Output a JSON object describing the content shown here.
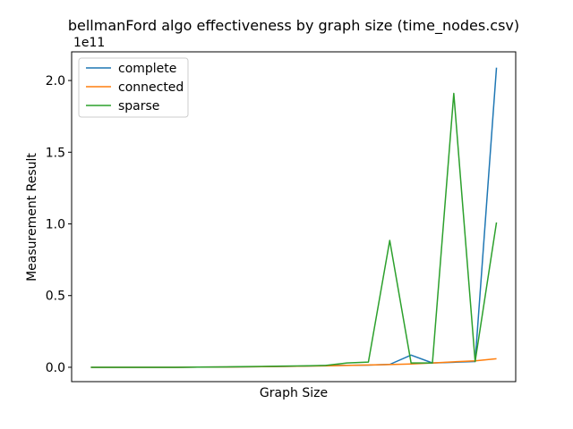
{
  "chart_data": {
    "type": "line",
    "title": "bellmanFord algo effectiveness by graph size (time_nodes.csv)",
    "xlabel": "Graph Size",
    "ylabel": "Measurement Result",
    "y_offset_label": "1e11",
    "y_scale": 100000000000,
    "ylim": [
      -0.1,
      2.2
    ],
    "xlim": [
      -0.9,
      19.9
    ],
    "x_tick_labels": [],
    "y_ticks": [
      0.0,
      0.5,
      1.0,
      1.5,
      2.0
    ],
    "y_tick_labels": [
      "0.0",
      "0.5",
      "1.0",
      "1.5",
      "2.0"
    ],
    "legend_position": "top-left",
    "grid": false,
    "x": [
      0,
      1,
      2,
      3,
      4,
      5,
      6,
      7,
      8,
      9,
      10,
      11,
      12,
      13,
      14,
      15,
      16,
      17,
      18,
      19
    ],
    "series": [
      {
        "name": "complete",
        "color": "#1f77b4",
        "values": [
          0.0,
          0.0,
          0.0,
          0.0,
          0.0,
          0.001,
          0.002,
          0.003,
          0.004,
          0.006,
          0.008,
          0.012,
          0.014,
          0.015,
          0.02,
          0.085,
          0.03,
          0.035,
          0.04,
          2.09
        ]
      },
      {
        "name": "connected",
        "color": "#ff7f0e",
        "values": [
          0.0,
          0.0,
          0.0,
          0.0,
          0.0,
          0.001,
          0.002,
          0.003,
          0.004,
          0.006,
          0.008,
          0.01,
          0.013,
          0.016,
          0.019,
          0.023,
          0.03,
          0.038,
          0.045,
          0.06
        ]
      },
      {
        "name": "sparse",
        "color": "#2ca02c",
        "values": [
          0.0,
          0.0,
          0.0,
          0.0,
          0.0,
          0.001,
          0.002,
          0.004,
          0.006,
          0.008,
          0.01,
          0.013,
          0.03,
          0.036,
          0.885,
          0.03,
          0.03,
          1.91,
          0.04,
          1.01
        ]
      }
    ]
  }
}
